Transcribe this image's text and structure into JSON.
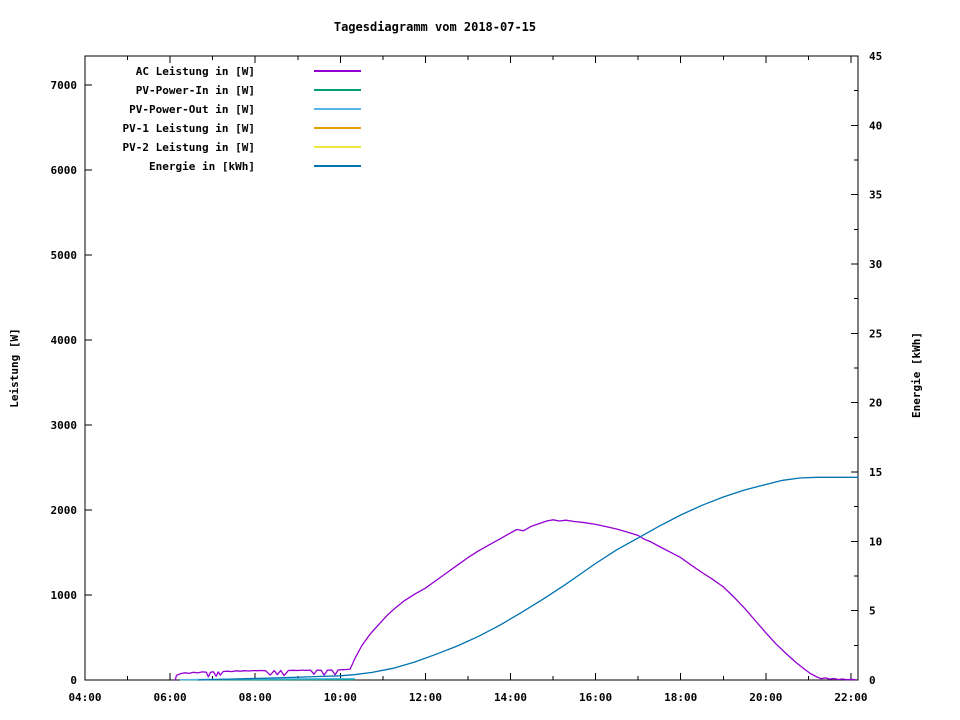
{
  "title": "Tagesdiagramm vom 2018-07-15",
  "chart_data": {
    "type": "line",
    "title": "Tagesdiagramm vom 2018-07-15",
    "grid": false,
    "legend_position": "top-left-inside",
    "x": {
      "unit": "time",
      "min_hours": 4.0,
      "max_hours": 22.1667,
      "major_tick_labels": [
        "04:00",
        "06:00",
        "08:00",
        "10:00",
        "12:00",
        "14:00",
        "16:00",
        "18:00",
        "20:00",
        "22:00"
      ],
      "major_tick_hours": [
        4,
        6,
        8,
        10,
        12,
        14,
        16,
        18,
        20,
        22
      ],
      "minor_tick_hours": [
        5,
        7,
        9,
        11,
        13,
        15,
        17,
        19,
        21
      ]
    },
    "y1": {
      "label": "Leistung [W]",
      "min": 0,
      "max": 7341,
      "tick_values": [
        0,
        1000,
        2000,
        3000,
        4000,
        5000,
        6000,
        7000
      ],
      "tick_labels": [
        "0",
        "1000",
        "2000",
        "3000",
        "4000",
        "5000",
        "6000",
        "7000"
      ]
    },
    "y2": {
      "label": "Energie [kWh]",
      "min": 0,
      "max": 45,
      "tick_values": [
        0,
        5,
        10,
        15,
        20,
        25,
        30,
        35,
        40,
        45
      ],
      "tick_labels": [
        "0",
        "5",
        "10",
        "15",
        "20",
        "25",
        "30",
        "35",
        "40",
        "45"
      ],
      "minor_tick_values": [
        2.5,
        7.5,
        12.5,
        17.5,
        22.5,
        27.5,
        32.5,
        37.5,
        42.5
      ]
    },
    "series": [
      {
        "name": "AC Leistung in [W]",
        "color": "#9400d3",
        "axis": "y1",
        "points": [
          [
            6.12,
            0
          ],
          [
            6.15,
            55
          ],
          [
            6.25,
            75
          ],
          [
            6.35,
            85
          ],
          [
            6.45,
            78
          ],
          [
            6.55,
            90
          ],
          [
            6.65,
            84
          ],
          [
            6.75,
            95
          ],
          [
            6.85,
            92
          ],
          [
            6.9,
            38
          ],
          [
            6.95,
            90
          ],
          [
            7.02,
            96
          ],
          [
            7.08,
            44
          ],
          [
            7.13,
            95
          ],
          [
            7.18,
            58
          ],
          [
            7.25,
            100
          ],
          [
            7.35,
            104
          ],
          [
            7.45,
            99
          ],
          [
            7.55,
            108
          ],
          [
            7.65,
            103
          ],
          [
            7.75,
            109
          ],
          [
            7.85,
            106
          ],
          [
            7.95,
            111
          ],
          [
            8.05,
            109
          ],
          [
            8.15,
            112
          ],
          [
            8.25,
            108
          ],
          [
            8.35,
            58
          ],
          [
            8.45,
            110
          ],
          [
            8.52,
            62
          ],
          [
            8.6,
            112
          ],
          [
            8.68,
            52
          ],
          [
            8.78,
            112
          ],
          [
            8.9,
            114
          ],
          [
            9.0,
            112
          ],
          [
            9.1,
            116
          ],
          [
            9.2,
            113
          ],
          [
            9.3,
            117
          ],
          [
            9.38,
            68
          ],
          [
            9.45,
            117
          ],
          [
            9.55,
            114
          ],
          [
            9.62,
            58
          ],
          [
            9.7,
            117
          ],
          [
            9.8,
            118
          ],
          [
            9.88,
            62
          ],
          [
            9.95,
            119
          ],
          [
            10.05,
            121
          ],
          [
            10.15,
            123
          ],
          [
            10.23,
            128
          ],
          [
            10.35,
            260
          ],
          [
            10.5,
            400
          ],
          [
            10.7,
            540
          ],
          [
            10.9,
            650
          ],
          [
            11.1,
            760
          ],
          [
            11.3,
            850
          ],
          [
            11.5,
            930
          ],
          [
            11.75,
            1010
          ],
          [
            12.0,
            1080
          ],
          [
            12.25,
            1170
          ],
          [
            12.5,
            1260
          ],
          [
            12.75,
            1350
          ],
          [
            13.0,
            1440
          ],
          [
            13.25,
            1520
          ],
          [
            13.5,
            1590
          ],
          [
            13.75,
            1660
          ],
          [
            14.0,
            1730
          ],
          [
            14.15,
            1770
          ],
          [
            14.3,
            1755
          ],
          [
            14.5,
            1810
          ],
          [
            14.7,
            1845
          ],
          [
            14.85,
            1870
          ],
          [
            15.0,
            1885
          ],
          [
            15.15,
            1870
          ],
          [
            15.3,
            1880
          ],
          [
            15.5,
            1865
          ],
          [
            15.75,
            1850
          ],
          [
            16.0,
            1830
          ],
          [
            16.25,
            1805
          ],
          [
            16.5,
            1775
          ],
          [
            16.75,
            1740
          ],
          [
            17.0,
            1700
          ],
          [
            17.15,
            1655
          ],
          [
            17.3,
            1625
          ],
          [
            17.5,
            1570
          ],
          [
            17.75,
            1505
          ],
          [
            18.0,
            1440
          ],
          [
            18.25,
            1350
          ],
          [
            18.5,
            1265
          ],
          [
            18.75,
            1185
          ],
          [
            19.0,
            1095
          ],
          [
            19.25,
            975
          ],
          [
            19.5,
            845
          ],
          [
            19.75,
            700
          ],
          [
            20.0,
            555
          ],
          [
            20.25,
            420
          ],
          [
            20.5,
            300
          ],
          [
            20.7,
            210
          ],
          [
            20.9,
            130
          ],
          [
            21.05,
            75
          ],
          [
            21.2,
            35
          ],
          [
            21.3,
            15
          ],
          [
            21.4,
            25
          ],
          [
            21.5,
            10
          ],
          [
            21.6,
            18
          ],
          [
            21.7,
            6
          ],
          [
            21.8,
            12
          ],
          [
            21.9,
            4
          ],
          [
            22.0,
            7
          ],
          [
            22.1,
            3
          ]
        ]
      },
      {
        "name": "PV-Power-In in [W]",
        "color": "#009e73",
        "axis": "y1",
        "points": [
          [
            6.25,
            2
          ],
          [
            7.5,
            4
          ],
          [
            9.0,
            5
          ],
          [
            10.33,
            6
          ]
        ]
      },
      {
        "name": "PV-Power-Out in [W]",
        "color": "#56b4e9",
        "axis": "y1",
        "points": [
          [
            6.25,
            5
          ],
          [
            7.0,
            8
          ],
          [
            8.0,
            12
          ],
          [
            9.0,
            14
          ],
          [
            10.0,
            16
          ],
          [
            10.33,
            18
          ]
        ]
      },
      {
        "name": "PV-1 Leistung in [W]",
        "color": "#e69f00",
        "axis": "y1",
        "points": []
      },
      {
        "name": "PV-2 Leistung in [W]",
        "color": "#f0e442",
        "axis": "y1",
        "points": []
      },
      {
        "name": "Energie in [kWh]",
        "color": "#0072b2",
        "axis": "y2",
        "points": [
          [
            6.67,
            0
          ],
          [
            7.5,
            0.07
          ],
          [
            8.5,
            0.15
          ],
          [
            9.5,
            0.25
          ],
          [
            10.0,
            0.3
          ],
          [
            10.33,
            0.38
          ],
          [
            10.75,
            0.55
          ],
          [
            11.25,
            0.85
          ],
          [
            11.75,
            1.3
          ],
          [
            12.25,
            1.85
          ],
          [
            12.75,
            2.45
          ],
          [
            13.25,
            3.15
          ],
          [
            13.75,
            3.95
          ],
          [
            14.25,
            4.85
          ],
          [
            14.75,
            5.8
          ],
          [
            15.25,
            6.8
          ],
          [
            15.65,
            7.65
          ],
          [
            16.0,
            8.4
          ],
          [
            16.5,
            9.4
          ],
          [
            17.0,
            10.25
          ],
          [
            17.5,
            11.1
          ],
          [
            18.0,
            11.9
          ],
          [
            18.5,
            12.6
          ],
          [
            19.0,
            13.2
          ],
          [
            19.5,
            13.7
          ],
          [
            20.0,
            14.1
          ],
          [
            20.4,
            14.4
          ],
          [
            20.8,
            14.57
          ],
          [
            21.2,
            14.62
          ],
          [
            22.17,
            14.62
          ]
        ]
      }
    ]
  },
  "colors": {
    "background": "#ffffff",
    "border": "#000000",
    "text": "#000000"
  }
}
